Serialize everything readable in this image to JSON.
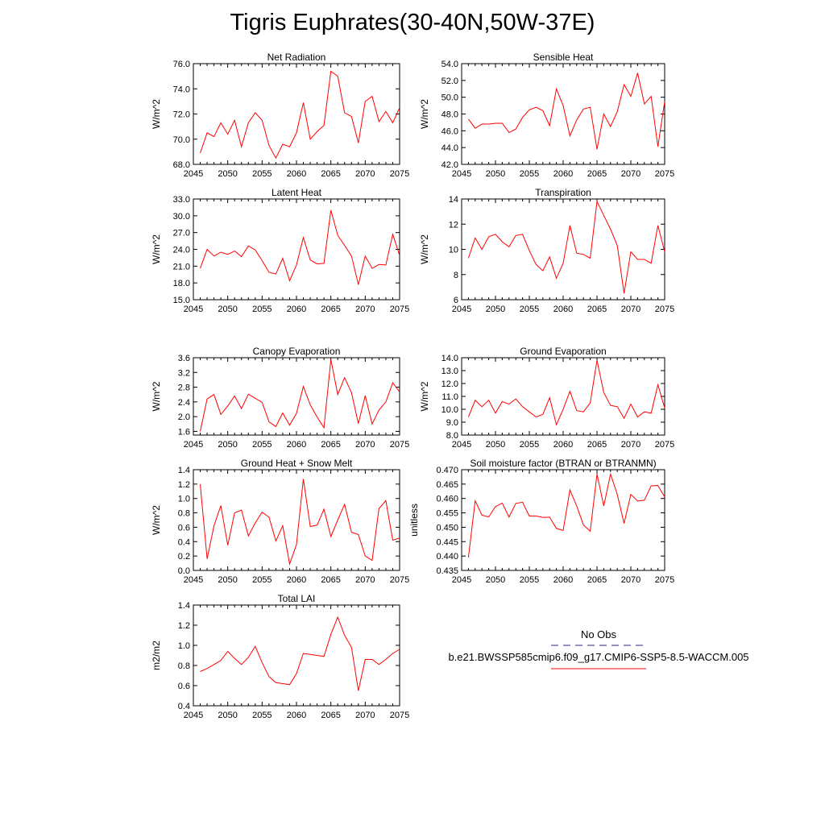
{
  "figure": {
    "title": "Tigris Euphrates(30-40N,50W-37E)",
    "line_color": "#ff0000"
  },
  "chart_data": [
    {
      "type": "line",
      "title": "Net Radiation",
      "ylabel": "W/m^2",
      "xlabel": "",
      "xlim": [
        2045,
        2075
      ],
      "ylim": [
        68.0,
        76.0
      ],
      "xticks": [
        "2045",
        "2050",
        "2055",
        "2060",
        "2065",
        "2070",
        "2075"
      ],
      "yticks": [
        "68.0",
        "70.0",
        "72.0",
        "74.0",
        "76.0"
      ],
      "x": [
        2046,
        2047,
        2048,
        2049,
        2050,
        2051,
        2052,
        2053,
        2054,
        2055,
        2056,
        2057,
        2058,
        2059,
        2060,
        2061,
        2062,
        2063,
        2064,
        2065,
        2066,
        2067,
        2068,
        2069,
        2070,
        2071,
        2072,
        2073,
        2074,
        2075
      ],
      "values": [
        68.9,
        70.5,
        70.2,
        71.3,
        70.4,
        71.5,
        69.4,
        71.3,
        72.1,
        71.5,
        69.5,
        68.5,
        69.6,
        69.4,
        70.5,
        72.9,
        70.0,
        70.6,
        71.1,
        75.4,
        75.0,
        72.1,
        71.8,
        69.7,
        73.0,
        73.4,
        71.4,
        72.2,
        71.3,
        72.5
      ]
    },
    {
      "type": "line",
      "title": "Sensible Heat",
      "ylabel": "W/m^2",
      "xlabel": "",
      "xlim": [
        2045,
        2075
      ],
      "ylim": [
        42.0,
        54.0
      ],
      "xticks": [
        "2045",
        "2050",
        "2055",
        "2060",
        "2065",
        "2070",
        "2075"
      ],
      "yticks": [
        "42.0",
        "44.0",
        "46.0",
        "48.0",
        "50.0",
        "52.0",
        "54.0"
      ],
      "x": [
        2046,
        2047,
        2048,
        2049,
        2050,
        2051,
        2052,
        2053,
        2054,
        2055,
        2056,
        2057,
        2058,
        2059,
        2060,
        2061,
        2062,
        2063,
        2064,
        2065,
        2066,
        2067,
        2068,
        2069,
        2070,
        2071,
        2072,
        2073,
        2074,
        2075
      ],
      "values": [
        47.4,
        46.3,
        46.8,
        46.8,
        46.9,
        46.9,
        45.8,
        46.2,
        47.6,
        48.5,
        48.8,
        48.4,
        46.6,
        51.0,
        49.0,
        45.4,
        47.3,
        48.6,
        48.8,
        43.8,
        48.0,
        46.5,
        48.3,
        51.5,
        50.1,
        52.9,
        49.2,
        50.1,
        44.1,
        49.5
      ]
    },
    {
      "type": "line",
      "title": "Latent Heat",
      "ylabel": "W/m^2",
      "xlabel": "",
      "xlim": [
        2045,
        2075
      ],
      "ylim": [
        15.0,
        33.0
      ],
      "xticks": [
        "2045",
        "2050",
        "2055",
        "2060",
        "2065",
        "2070",
        "2075"
      ],
      "yticks": [
        "15.0",
        "18.0",
        "21.0",
        "24.0",
        "27.0",
        "30.0",
        "33.0"
      ],
      "x": [
        2046,
        2047,
        2048,
        2049,
        2050,
        2051,
        2052,
        2053,
        2054,
        2055,
        2056,
        2057,
        2058,
        2059,
        2060,
        2061,
        2062,
        2063,
        2064,
        2065,
        2066,
        2067,
        2068,
        2069,
        2070,
        2071,
        2072,
        2073,
        2074,
        2075
      ],
      "values": [
        20.6,
        24.0,
        22.8,
        23.5,
        23.1,
        23.7,
        22.7,
        24.6,
        23.9,
        22.0,
        19.9,
        19.6,
        22.4,
        18.4,
        21.2,
        26.1,
        22.1,
        21.4,
        21.5,
        31.0,
        26.5,
        24.7,
        22.8,
        17.7,
        22.8,
        20.6,
        21.3,
        21.2,
        26.7,
        22.9
      ]
    },
    {
      "type": "line",
      "title": "Transpiration",
      "ylabel": "W/m^2",
      "xlabel": "",
      "xlim": [
        2045,
        2075
      ],
      "ylim": [
        6,
        14
      ],
      "xticks": [
        "2045",
        "2050",
        "2055",
        "2060",
        "2065",
        "2070",
        "2075"
      ],
      "yticks": [
        "6",
        "8",
        "10",
        "12",
        "14"
      ],
      "x": [
        2046,
        2047,
        2048,
        2049,
        2050,
        2051,
        2052,
        2053,
        2054,
        2055,
        2056,
        2057,
        2058,
        2059,
        2060,
        2061,
        2062,
        2063,
        2064,
        2065,
        2066,
        2067,
        2068,
        2069,
        2070,
        2071,
        2072,
        2073,
        2074,
        2075
      ],
      "values": [
        9.3,
        10.9,
        10.0,
        11.0,
        11.2,
        10.6,
        10.2,
        11.1,
        11.2,
        9.9,
        8.8,
        8.3,
        9.4,
        7.7,
        8.9,
        11.9,
        9.7,
        9.6,
        9.3,
        13.8,
        12.7,
        11.6,
        10.3,
        6.5,
        9.8,
        9.2,
        9.2,
        8.9,
        11.9,
        9.8
      ]
    },
    {
      "type": "line",
      "title": "Canopy Evaporation",
      "ylabel": "W/m^2",
      "xlabel": "",
      "xlim": [
        2045,
        2075
      ],
      "ylim": [
        1.5,
        3.6
      ],
      "xticks": [
        "2045",
        "2050",
        "2055",
        "2060",
        "2065",
        "2070",
        "2075"
      ],
      "yticks": [
        "1.6",
        "2.0",
        "2.4",
        "2.8",
        "3.2",
        "3.6"
      ],
      "x": [
        2046,
        2047,
        2048,
        2049,
        2050,
        2051,
        2052,
        2053,
        2054,
        2055,
        2056,
        2057,
        2058,
        2059,
        2060,
        2061,
        2062,
        2063,
        2064,
        2065,
        2066,
        2067,
        2068,
        2069,
        2070,
        2071,
        2072,
        2073,
        2074,
        2075
      ],
      "values": [
        1.6,
        2.48,
        2.6,
        2.06,
        2.29,
        2.56,
        2.22,
        2.61,
        2.5,
        2.39,
        1.86,
        1.73,
        2.1,
        1.77,
        2.09,
        2.82,
        2.32,
        1.99,
        1.7,
        3.55,
        2.6,
        3.06,
        2.65,
        1.81,
        2.57,
        1.8,
        2.18,
        2.4,
        2.92,
        2.67
      ]
    },
    {
      "type": "line",
      "title": "Ground Evaporation",
      "ylabel": "W/m^2",
      "xlabel": "",
      "xlim": [
        2045,
        2075
      ],
      "ylim": [
        8.0,
        14.0
      ],
      "xticks": [
        "2045",
        "2050",
        "2055",
        "2060",
        "2065",
        "2070",
        "2075"
      ],
      "yticks": [
        "8.0",
        "9.0",
        "10.0",
        "11.0",
        "12.0",
        "13.0",
        "14.0"
      ],
      "x": [
        2046,
        2047,
        2048,
        2049,
        2050,
        2051,
        2052,
        2053,
        2054,
        2055,
        2056,
        2057,
        2058,
        2059,
        2060,
        2061,
        2062,
        2063,
        2064,
        2065,
        2066,
        2067,
        2068,
        2069,
        2070,
        2071,
        2072,
        2073,
        2074,
        2075
      ],
      "values": [
        9.4,
        10.7,
        10.2,
        10.7,
        9.7,
        10.6,
        10.4,
        10.8,
        10.2,
        9.8,
        9.4,
        9.6,
        10.9,
        8.8,
        10.0,
        11.4,
        9.9,
        9.8,
        10.5,
        13.8,
        11.3,
        10.3,
        10.2,
        9.3,
        10.4,
        9.4,
        9.8,
        9.7,
        11.9,
        10.1
      ]
    },
    {
      "type": "line",
      "title": "Ground Heat + Snow Melt",
      "ylabel": "W/m^2",
      "xlabel": "",
      "xlim": [
        2045,
        2075
      ],
      "ylim": [
        0.0,
        1.4
      ],
      "xticks": [
        "2045",
        "2050",
        "2055",
        "2060",
        "2065",
        "2070",
        "2075"
      ],
      "yticks": [
        "0.0",
        "0.2",
        "0.4",
        "0.6",
        "0.8",
        "1.0",
        "1.2",
        "1.4"
      ],
      "x": [
        2046,
        2047,
        2048,
        2049,
        2050,
        2051,
        2052,
        2053,
        2054,
        2055,
        2056,
        2057,
        2058,
        2059,
        2060,
        2061,
        2062,
        2063,
        2064,
        2065,
        2066,
        2067,
        2068,
        2069,
        2070,
        2071,
        2072,
        2073,
        2074,
        2075
      ],
      "values": [
        1.2,
        0.16,
        0.62,
        0.9,
        0.35,
        0.8,
        0.84,
        0.48,
        0.66,
        0.81,
        0.74,
        0.41,
        0.62,
        0.09,
        0.36,
        1.27,
        0.61,
        0.63,
        0.85,
        0.47,
        0.7,
        0.92,
        0.53,
        0.5,
        0.2,
        0.14,
        0.86,
        0.97,
        0.42,
        0.45
      ]
    },
    {
      "type": "line",
      "title": "Soil moisture factor (BTRAN or BTRANMN)",
      "ylabel": "unitless",
      "xlabel": "",
      "xlim": [
        2045,
        2075
      ],
      "ylim": [
        0.435,
        0.47
      ],
      "xticks": [
        "2045",
        "2050",
        "2055",
        "2060",
        "2065",
        "2070",
        "2075"
      ],
      "yticks": [
        "0.435",
        "0.440",
        "0.445",
        "0.450",
        "0.455",
        "0.460",
        "0.465",
        "0.470"
      ],
      "x": [
        2046,
        2047,
        2048,
        2049,
        2050,
        2051,
        2052,
        2053,
        2054,
        2055,
        2056,
        2057,
        2058,
        2059,
        2060,
        2061,
        2062,
        2063,
        2064,
        2065,
        2066,
        2067,
        2068,
        2069,
        2070,
        2071,
        2072,
        2073,
        2074,
        2075
      ],
      "values": [
        0.4395,
        0.4592,
        0.4542,
        0.4536,
        0.4572,
        0.4584,
        0.4535,
        0.4583,
        0.4587,
        0.4539,
        0.4539,
        0.4534,
        0.4535,
        0.4496,
        0.4489,
        0.463,
        0.4574,
        0.4508,
        0.4486,
        0.4685,
        0.4574,
        0.4685,
        0.4614,
        0.4513,
        0.4614,
        0.4591,
        0.4594,
        0.4644,
        0.4645,
        0.4605
      ]
    },
    {
      "type": "line",
      "title": "Total LAI",
      "ylabel": "m2/m2",
      "xlabel": "",
      "xlim": [
        2045,
        2075
      ],
      "ylim": [
        0.4,
        1.4
      ],
      "xticks": [
        "2045",
        "2050",
        "2055",
        "2060",
        "2065",
        "2070",
        "2075"
      ],
      "yticks": [
        "0.4",
        "0.6",
        "0.8",
        "1.0",
        "1.2",
        "1.4"
      ],
      "x": [
        2046,
        2047,
        2048,
        2049,
        2050,
        2051,
        2052,
        2053,
        2054,
        2055,
        2056,
        2057,
        2058,
        2059,
        2060,
        2061,
        2062,
        2063,
        2064,
        2065,
        2066,
        2067,
        2068,
        2069,
        2070,
        2071,
        2072,
        2073,
        2074,
        2075
      ],
      "values": [
        0.74,
        0.77,
        0.81,
        0.85,
        0.94,
        0.87,
        0.81,
        0.88,
        0.99,
        0.83,
        0.69,
        0.63,
        0.62,
        0.61,
        0.72,
        0.92,
        0.91,
        0.9,
        0.89,
        1.11,
        1.28,
        1.1,
        0.98,
        0.55,
        0.86,
        0.86,
        0.81,
        0.86,
        0.92,
        0.96
      ]
    }
  ],
  "legend": {
    "entries": [
      {
        "label": "No Obs",
        "color": "#2a2a7a",
        "dash": "dashed"
      },
      {
        "label": "b.e21.BWSSP585cmip6.f09_g17.CMIP6-SSP5-8.5-WACCM.005",
        "color": "#ff0000",
        "dash": "solid"
      }
    ]
  }
}
